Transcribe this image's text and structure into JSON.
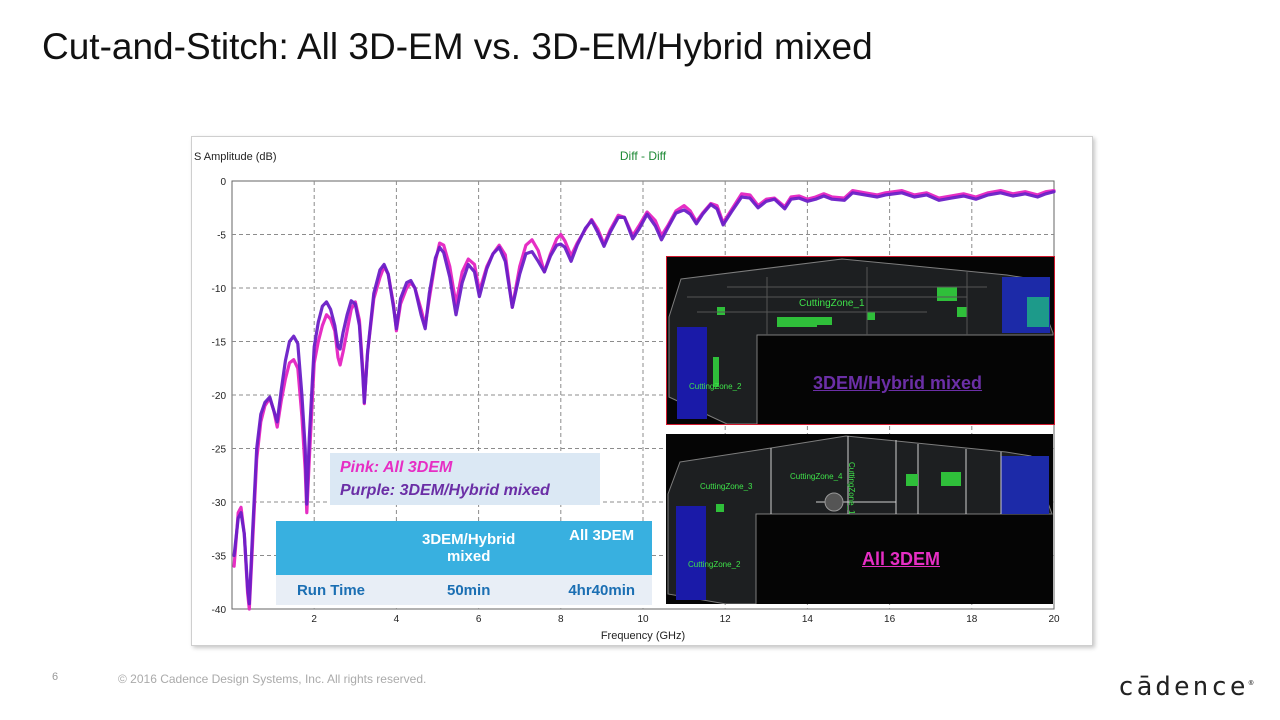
{
  "slide": {
    "title": "Cut-and-Stitch: All 3D-EM vs. 3D-EM/Hybrid mixed",
    "page_number": "6",
    "copyright": "© 2016 Cadence Design Systems, Inc. All rights reserved.",
    "logo_text": "cādence"
  },
  "chart_data": {
    "type": "line",
    "title": "Diff - Diff",
    "ylabel": "S Amplitude (dB)",
    "xlabel": "Frequency (GHz)",
    "xlim": [
      0,
      20
    ],
    "ylim": [
      -40,
      0
    ],
    "x_ticks": [
      2,
      4,
      6,
      8,
      10,
      12,
      14,
      16,
      18,
      20
    ],
    "y_ticks": [
      0,
      -5,
      -10,
      -15,
      -20,
      -25,
      -30,
      -35,
      -40
    ],
    "grid": true,
    "colors": {
      "pink": "#e62ec4",
      "purple": "#6a1fc7",
      "title": "#1e8a36",
      "grid": "#8c8c8c"
    },
    "series": [
      {
        "name": "Pink: All 3DEM",
        "color": "#e62ec4",
        "points": [
          [
            0.05,
            -36
          ],
          [
            0.15,
            -31
          ],
          [
            0.22,
            -30.5
          ],
          [
            0.3,
            -33
          ],
          [
            0.38,
            -38.5
          ],
          [
            0.42,
            -40
          ],
          [
            0.5,
            -34
          ],
          [
            0.6,
            -26
          ],
          [
            0.7,
            -22.5
          ],
          [
            0.8,
            -21
          ],
          [
            0.92,
            -20.3
          ],
          [
            1.02,
            -21.5
          ],
          [
            1.1,
            -23
          ],
          [
            1.2,
            -20.5
          ],
          [
            1.3,
            -18.5
          ],
          [
            1.4,
            -17
          ],
          [
            1.5,
            -16.7
          ],
          [
            1.6,
            -17.5
          ],
          [
            1.7,
            -22
          ],
          [
            1.78,
            -27
          ],
          [
            1.82,
            -31
          ],
          [
            1.88,
            -26
          ],
          [
            2.0,
            -17
          ],
          [
            2.1,
            -15
          ],
          [
            2.2,
            -13.5
          ],
          [
            2.3,
            -12.5
          ],
          [
            2.4,
            -12.9
          ],
          [
            2.5,
            -14
          ],
          [
            2.58,
            -16.5
          ],
          [
            2.63,
            -17.2
          ],
          [
            2.7,
            -16
          ],
          [
            2.8,
            -14
          ],
          [
            2.9,
            -12
          ],
          [
            3.0,
            -11.3
          ],
          [
            3.1,
            -13
          ],
          [
            3.18,
            -17.5
          ],
          [
            3.22,
            -20.8
          ],
          [
            3.3,
            -16
          ],
          [
            3.45,
            -11
          ],
          [
            3.6,
            -9
          ],
          [
            3.7,
            -8
          ],
          [
            3.8,
            -8.7
          ],
          [
            3.93,
            -11.5
          ],
          [
            4.0,
            -14
          ],
          [
            4.1,
            -11.5
          ],
          [
            4.25,
            -10
          ],
          [
            4.35,
            -9.5
          ],
          [
            4.45,
            -10
          ],
          [
            4.6,
            -12
          ],
          [
            4.7,
            -13.5
          ],
          [
            4.8,
            -11
          ],
          [
            4.95,
            -7.5
          ],
          [
            5.05,
            -5.8
          ],
          [
            5.15,
            -6
          ],
          [
            5.3,
            -8
          ],
          [
            5.45,
            -11.5
          ],
          [
            5.6,
            -8.5
          ],
          [
            5.75,
            -7.3
          ],
          [
            5.9,
            -7.8
          ],
          [
            6.02,
            -10.3
          ],
          [
            6.2,
            -8
          ],
          [
            6.35,
            -6.8
          ],
          [
            6.5,
            -6
          ],
          [
            6.65,
            -6.9
          ],
          [
            6.82,
            -11.8
          ],
          [
            7.0,
            -8
          ],
          [
            7.15,
            -6
          ],
          [
            7.3,
            -5.5
          ],
          [
            7.45,
            -6.5
          ],
          [
            7.6,
            -8.5
          ],
          [
            7.75,
            -6.8
          ],
          [
            7.9,
            -5.4
          ],
          [
            8.0,
            -5
          ],
          [
            8.1,
            -5.6
          ],
          [
            8.25,
            -7
          ],
          [
            8.4,
            -5.8
          ],
          [
            8.6,
            -4.5
          ],
          [
            8.75,
            -3.6
          ],
          [
            8.9,
            -4.5
          ],
          [
            9.05,
            -5.9
          ],
          [
            9.2,
            -4.6
          ],
          [
            9.4,
            -3.2
          ],
          [
            9.55,
            -3.4
          ],
          [
            9.75,
            -5.1
          ],
          [
            9.9,
            -4.2
          ],
          [
            10.1,
            -2.9
          ],
          [
            10.3,
            -3.7
          ],
          [
            10.45,
            -5.1
          ],
          [
            10.6,
            -4.2
          ],
          [
            10.8,
            -2.8
          ],
          [
            11.0,
            -2.3
          ],
          [
            11.15,
            -2.8
          ],
          [
            11.3,
            -3.8
          ],
          [
            11.45,
            -3
          ],
          [
            11.65,
            -2.1
          ],
          [
            11.8,
            -2.3
          ],
          [
            11.95,
            -3.9
          ],
          [
            12.15,
            -2.7
          ],
          [
            12.4,
            -1.2
          ],
          [
            12.6,
            -1.3
          ],
          [
            12.8,
            -2.3
          ],
          [
            13.0,
            -1.7
          ],
          [
            13.2,
            -1.6
          ],
          [
            13.45,
            -2.4
          ],
          [
            13.6,
            -1.5
          ],
          [
            13.8,
            -1.4
          ],
          [
            14.0,
            -1.7
          ],
          [
            14.2,
            -1.5
          ],
          [
            14.4,
            -1.2
          ],
          [
            14.6,
            -1.5
          ],
          [
            14.9,
            -1.6
          ],
          [
            15.1,
            -0.9
          ],
          [
            15.4,
            -1.1
          ],
          [
            15.7,
            -1.3
          ],
          [
            15.9,
            -1.1
          ],
          [
            16.3,
            -0.9
          ],
          [
            16.6,
            -1.3
          ],
          [
            16.9,
            -1.1
          ],
          [
            17.2,
            -1.6
          ],
          [
            17.5,
            -1.4
          ],
          [
            17.8,
            -1.2
          ],
          [
            18.1,
            -1.5
          ],
          [
            18.4,
            -1.1
          ],
          [
            18.7,
            -0.9
          ],
          [
            19.0,
            -1.2
          ],
          [
            19.3,
            -1.0
          ],
          [
            19.6,
            -1.3
          ],
          [
            19.8,
            -1.0
          ],
          [
            20.0,
            -0.9
          ]
        ]
      },
      {
        "name": "Purple: 3DEM/Hybrid mixed",
        "color": "#6a1fc7",
        "points": [
          [
            0.05,
            -35
          ],
          [
            0.15,
            -31.5
          ],
          [
            0.22,
            -31
          ],
          [
            0.3,
            -33
          ],
          [
            0.38,
            -38
          ],
          [
            0.42,
            -39.5
          ],
          [
            0.5,
            -33
          ],
          [
            0.6,
            -25
          ],
          [
            0.7,
            -21.8
          ],
          [
            0.8,
            -20.7
          ],
          [
            0.92,
            -20.2
          ],
          [
            1.02,
            -21.5
          ],
          [
            1.1,
            -22.5
          ],
          [
            1.2,
            -19.5
          ],
          [
            1.3,
            -16.8
          ],
          [
            1.4,
            -15
          ],
          [
            1.5,
            -14.5
          ],
          [
            1.6,
            -15.2
          ],
          [
            1.7,
            -20
          ],
          [
            1.78,
            -25
          ],
          [
            1.82,
            -30.2
          ],
          [
            1.88,
            -24
          ],
          [
            2.0,
            -15.5
          ],
          [
            2.1,
            -13.2
          ],
          [
            2.2,
            -11.7
          ],
          [
            2.3,
            -11.3
          ],
          [
            2.4,
            -12
          ],
          [
            2.5,
            -13.5
          ],
          [
            2.58,
            -15.5
          ],
          [
            2.63,
            -15.7
          ],
          [
            2.7,
            -14.2
          ],
          [
            2.8,
            -12.5
          ],
          [
            2.9,
            -11.2
          ],
          [
            3.0,
            -11.5
          ],
          [
            3.1,
            -13.5
          ],
          [
            3.18,
            -18
          ],
          [
            3.22,
            -20.7
          ],
          [
            3.3,
            -16
          ],
          [
            3.45,
            -10.5
          ],
          [
            3.6,
            -8.3
          ],
          [
            3.7,
            -7.8
          ],
          [
            3.8,
            -8.7
          ],
          [
            3.93,
            -11.8
          ],
          [
            4.0,
            -13.8
          ],
          [
            4.1,
            -11
          ],
          [
            4.25,
            -9.5
          ],
          [
            4.35,
            -9.3
          ],
          [
            4.45,
            -10
          ],
          [
            4.6,
            -12.5
          ],
          [
            4.7,
            -13.8
          ],
          [
            4.8,
            -10.5
          ],
          [
            4.95,
            -7.2
          ],
          [
            5.05,
            -6.2
          ],
          [
            5.15,
            -6.7
          ],
          [
            5.3,
            -9
          ],
          [
            5.45,
            -12.5
          ],
          [
            5.6,
            -9.5
          ],
          [
            5.75,
            -7.8
          ],
          [
            5.9,
            -8.5
          ],
          [
            6.02,
            -10.8
          ],
          [
            6.2,
            -8.2
          ],
          [
            6.35,
            -6.8
          ],
          [
            6.5,
            -6.2
          ],
          [
            6.65,
            -7.5
          ],
          [
            6.82,
            -11.8
          ],
          [
            7.0,
            -8.7
          ],
          [
            7.15,
            -6.8
          ],
          [
            7.3,
            -6.6
          ],
          [
            7.45,
            -7.5
          ],
          [
            7.6,
            -8.5
          ],
          [
            7.75,
            -7
          ],
          [
            7.9,
            -6
          ],
          [
            8.0,
            -5.9
          ],
          [
            8.1,
            -6.2
          ],
          [
            8.25,
            -7.5
          ],
          [
            8.4,
            -6
          ],
          [
            8.6,
            -4.4
          ],
          [
            8.75,
            -3.7
          ],
          [
            8.9,
            -4.8
          ],
          [
            9.05,
            -6.1
          ],
          [
            9.2,
            -4.8
          ],
          [
            9.4,
            -3.4
          ],
          [
            9.55,
            -3.4
          ],
          [
            9.75,
            -5.4
          ],
          [
            9.9,
            -4.5
          ],
          [
            10.1,
            -3.1
          ],
          [
            10.3,
            -4.2
          ],
          [
            10.45,
            -5.5
          ],
          [
            10.6,
            -4.4
          ],
          [
            10.8,
            -3
          ],
          [
            11.0,
            -2.7
          ],
          [
            11.15,
            -3.1
          ],
          [
            11.3,
            -4
          ],
          [
            11.45,
            -3.1
          ],
          [
            11.65,
            -2.2
          ],
          [
            11.8,
            -2.6
          ],
          [
            11.95,
            -4.1
          ],
          [
            12.15,
            -2.9
          ],
          [
            12.4,
            -1.5
          ],
          [
            12.6,
            -1.6
          ],
          [
            12.8,
            -2.5
          ],
          [
            13.0,
            -1.9
          ],
          [
            13.2,
            -1.7
          ],
          [
            13.45,
            -2.6
          ],
          [
            13.6,
            -1.7
          ],
          [
            13.8,
            -1.6
          ],
          [
            14.0,
            -1.9
          ],
          [
            14.2,
            -1.7
          ],
          [
            14.4,
            -1.4
          ],
          [
            14.6,
            -1.7
          ],
          [
            14.9,
            -1.8
          ],
          [
            15.1,
            -1.1
          ],
          [
            15.4,
            -1.3
          ],
          [
            15.7,
            -1.5
          ],
          [
            15.9,
            -1.3
          ],
          [
            16.3,
            -1.1
          ],
          [
            16.6,
            -1.5
          ],
          [
            16.9,
            -1.3
          ],
          [
            17.2,
            -1.8
          ],
          [
            17.5,
            -1.6
          ],
          [
            17.8,
            -1.4
          ],
          [
            18.1,
            -1.7
          ],
          [
            18.4,
            -1.3
          ],
          [
            18.7,
            -1.1
          ],
          [
            19.0,
            -1.4
          ],
          [
            19.3,
            -1.2
          ],
          [
            19.6,
            -1.5
          ],
          [
            19.8,
            -1.2
          ],
          [
            20.0,
            -1.0
          ]
        ]
      }
    ]
  },
  "legend": {
    "pink": "Pink: All 3DEM",
    "purple": "Purple: 3DEM/Hybrid mixed"
  },
  "run_time_table": {
    "headers": [
      "",
      "3DEM/Hybrid mixed",
      "All 3DEM"
    ],
    "rows": [
      [
        "Run Time",
        "50min",
        "4hr40min"
      ]
    ]
  },
  "insets": {
    "top": {
      "caption": "3DEM/Hybrid mixed",
      "caption_color": "#6b2fa6",
      "zones": [
        "CuttingZone_1",
        "CuttingZone_2"
      ]
    },
    "bottom": {
      "caption": "All 3DEM",
      "caption_color": "#e62ec4",
      "zones": [
        "CuttingZone_3",
        "CuttingZone_4",
        "CuttingZone_1",
        "CuttingZone_2"
      ]
    }
  }
}
